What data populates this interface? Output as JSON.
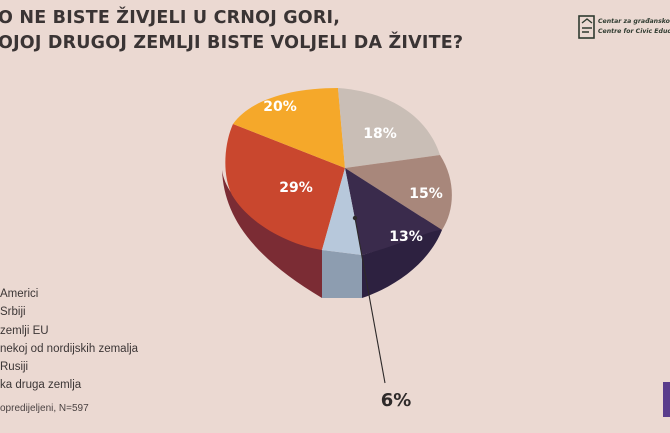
{
  "title": {
    "line1": "O NE BISTE ŽIVJELI U CRNOJ GORI,",
    "line2": "OJOJ DRUGOJ ZEMLJI BISTE VOLJELI DA ŽIVITE?"
  },
  "logo": {
    "line1": "Centar za građansko ob",
    "line2": "Centre for Civic Educatio"
  },
  "footnote": "opredijeljeni, N=597",
  "colors": {
    "background": "#ebd9d2",
    "amerika": "#c9beb6",
    "srbija": "#a8877b",
    "eu": "#3a2b4c",
    "neopredijeljeni": "#b7c8db",
    "druga": "#7b2c34",
    "nordijske": "#c9472e",
    "rusija": "#f5a82a",
    "accent_bar": "#5a3d8c"
  },
  "chart_data": {
    "type": "pie",
    "title": "",
    "slices": [
      {
        "label": "Americi",
        "value": 18,
        "value_label": "18%",
        "color": "#c9beb6"
      },
      {
        "label": "Srbiji",
        "value": 15,
        "value_label": "15%",
        "color": "#a8877b"
      },
      {
        "label": "zemlji EU",
        "value": 13,
        "value_label": "13%",
        "color": "#3a2b4c"
      },
      {
        "label": "opredijeljeni",
        "value": 6,
        "value_label": "6%",
        "color": "#b7c8db"
      },
      {
        "label": "ka druga zemlja",
        "value": 29,
        "value_label": "29%",
        "color": "#c9472e"
      },
      {
        "label": "Rusiji",
        "value": 20,
        "value_label": "20%",
        "color": "#f5a82a"
      }
    ],
    "legend": [
      {
        "label": "Americi",
        "color": "#c9beb6"
      },
      {
        "label": "Srbiji",
        "color": "#a8877b"
      },
      {
        "label": "zemlji EU",
        "color": "#3a2b4c"
      },
      {
        "label": "nekoj od nordijskih zemalja",
        "color": "#c9472e"
      },
      {
        "label": "Rusiji",
        "color": "#f5a82a"
      },
      {
        "label": "ka druga zemlja",
        "color": "#7b2c34"
      }
    ],
    "legend_position": "bottom-left",
    "callout": "6%"
  }
}
